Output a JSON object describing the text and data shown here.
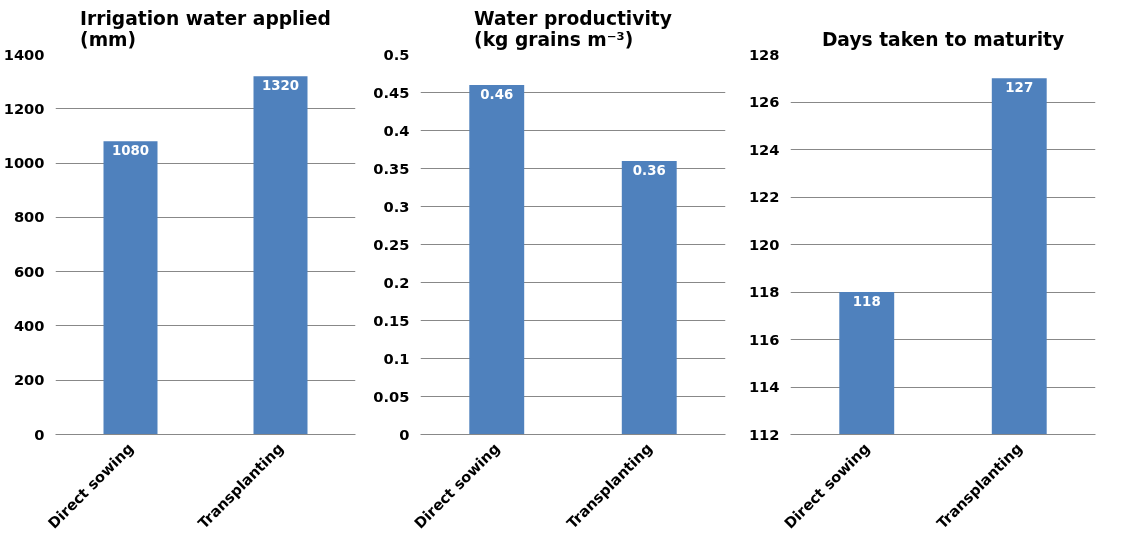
{
  "chart_data": [
    {
      "type": "bar",
      "title": "Irrigation water applied\n(mm)",
      "categories": [
        "Direct sowing",
        "Transplanting"
      ],
      "values": [
        1080,
        1320
      ],
      "color": "#4f81bd",
      "ylim": [
        0,
        1400
      ],
      "yticks": [
        0,
        200,
        400,
        600,
        800,
        1000,
        1200,
        1400
      ],
      "grid": "y",
      "data_labels": true
    },
    {
      "type": "bar",
      "title": "Water productivity\n(kg grains m⁻³)",
      "categories": [
        "Direct sowing",
        "Transplanting"
      ],
      "values": [
        0.46,
        0.36
      ],
      "color": "#4f81bd",
      "ylim": [
        0,
        0.5
      ],
      "yticks": [
        0,
        0.05,
        0.1,
        0.15,
        0.2,
        0.25,
        0.3,
        0.35,
        0.4,
        0.45,
        0.5
      ],
      "grid": "y",
      "data_labels": true
    },
    {
      "type": "bar",
      "title": "Days taken to maturity",
      "categories": [
        "Direct sowing",
        "Transplanting"
      ],
      "values": [
        118,
        127
      ],
      "color": "#4f81bd",
      "ylim": [
        112,
        128
      ],
      "yticks": [
        112,
        114,
        116,
        118,
        120,
        122,
        124,
        126,
        128
      ],
      "grid": "y",
      "data_labels": true
    }
  ]
}
